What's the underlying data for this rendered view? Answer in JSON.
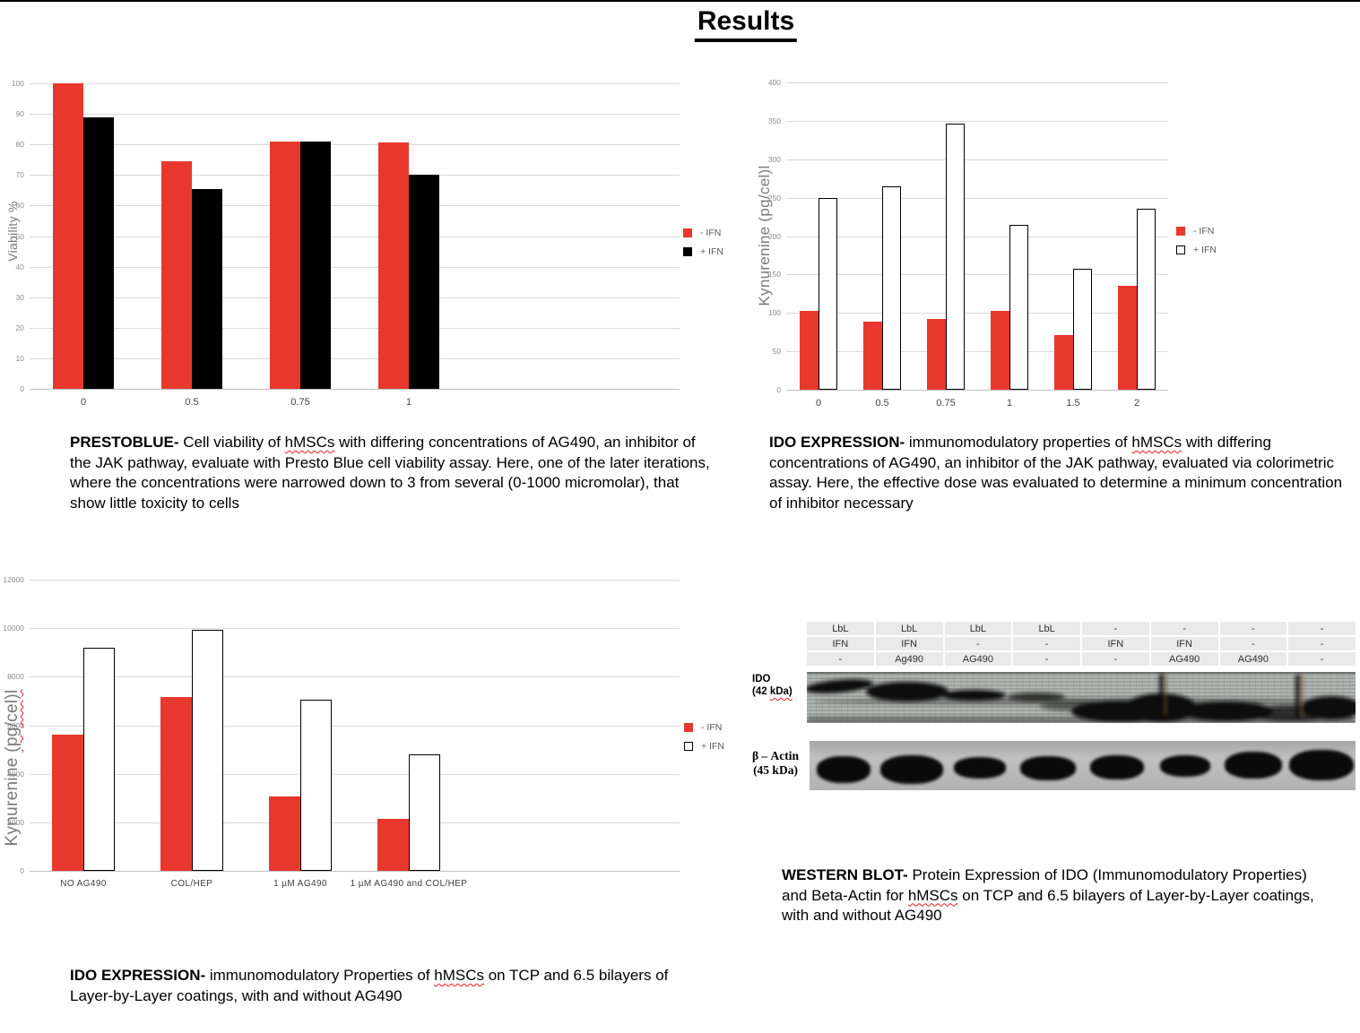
{
  "page": {
    "title": "Results"
  },
  "chart_data": [
    {
      "type": "bar",
      "ylabel": "Viability %",
      "categories": [
        "0",
        "0.5",
        "0.75",
        "1"
      ],
      "series": [
        {
          "name": "- IFN",
          "color": "#e8382d",
          "values": [
            100,
            74.5,
            81,
            80.5
          ]
        },
        {
          "name": "+ IFN",
          "color": "#000000",
          "values": [
            89,
            65.5,
            81,
            70
          ]
        }
      ],
      "ylim": [
        0,
        100
      ],
      "ystep": 10,
      "slots": 6,
      "grid": true,
      "legend_position": "right"
    },
    {
      "type": "bar",
      "ylabel": "Kynurenine (pg/cel)l",
      "categories": [
        "0",
        "0.5",
        "0.75",
        "1",
        "1.5",
        "2"
      ],
      "series": [
        {
          "name": "- IFN",
          "color": "#e8382d",
          "values": [
            103,
            89,
            92,
            103,
            71,
            135
          ]
        },
        {
          "name": "+ IFN",
          "color": "#ffffff",
          "values": [
            249,
            265,
            346,
            214,
            158,
            235
          ]
        }
      ],
      "ylim": [
        0,
        400
      ],
      "ystep": 50,
      "slots": 6,
      "grid": true,
      "legend_position": "right"
    },
    {
      "type": "bar",
      "ylabel_pre": "Kynurenine ",
      "ylabel_wavy": "(pg/cel)l",
      "categories": [
        "NO AG490",
        "COL/HEP",
        "1 µM AG490",
        "1 µM AG490 and COL/HEP"
      ],
      "series": [
        {
          "name": "- IFN",
          "color": "#e8382d",
          "values": [
            5600,
            7150,
            3050,
            2150
          ]
        },
        {
          "name": "+ IFN",
          "color": "#ffffff",
          "values": [
            9200,
            9950,
            7050,
            4800
          ]
        }
      ],
      "ylim": [
        0,
        12000
      ],
      "ystep": 2000,
      "slots": 6,
      "grid": true,
      "legend_position": "right"
    }
  ],
  "captions": {
    "prestoblue": {
      "lead": "PRESTOBLUE-",
      "pre": " Cell viability of ",
      "wavy": "hMSCs",
      "post": " with differing concentrations of AG490, an inhibitor of the JAK pathway, evaluate with Presto Blue cell viability assay. Here, one of the later iterations, where the concentrations were narrowed down to 3 from several (0-1000 micromolar), that show little toxicity to cells"
    },
    "ido_dose": {
      "lead": "IDO EXPRESSION-",
      "pre": " immunomodulatory properties of ",
      "wavy": "hMSCs",
      "post": " with differing concentrations of AG490, an inhibitor of the JAK pathway, evaluated via colorimetric assay. Here, the effective dose was evaluated to determine a minimum concentration of inhibitor necessary"
    },
    "western": {
      "lead": "WESTERN BLOT-",
      "pre": " Protein Expression of IDO (Immunomodulatory Properties) and Beta-Actin for ",
      "wavy": "hMSCs",
      "post": " on TCP and 6.5 bilayers of Layer-by-Layer coatings, with and without AG490"
    },
    "ido_coating": {
      "lead": "IDO EXPRESSION-",
      "pre": " immunomodulatory Properties of ",
      "wavy": "hMSCs",
      "post": " on TCP and 6.5 bilayers of Layer-by-Layer coatings, with and without AG490"
    }
  },
  "western": {
    "table": {
      "rows": [
        [
          "LbL",
          "LbL",
          "LbL",
          "LbL",
          "-",
          "-",
          "-",
          "-"
        ],
        [
          "IFN",
          "IFN",
          "-",
          "-",
          "IFN",
          "IFN",
          "-",
          "-"
        ],
        [
          "-",
          "Ag490",
          "AG490",
          "-",
          "-",
          "AG490",
          "AG490",
          "-"
        ]
      ]
    },
    "ido_label": "IDO",
    "ido_kda_pre": "(42 ",
    "ido_kda_wavy": "kDa)",
    "actin_label": "β – Actin",
    "actin_kda": "(45 kDa)",
    "lanes": 8
  }
}
